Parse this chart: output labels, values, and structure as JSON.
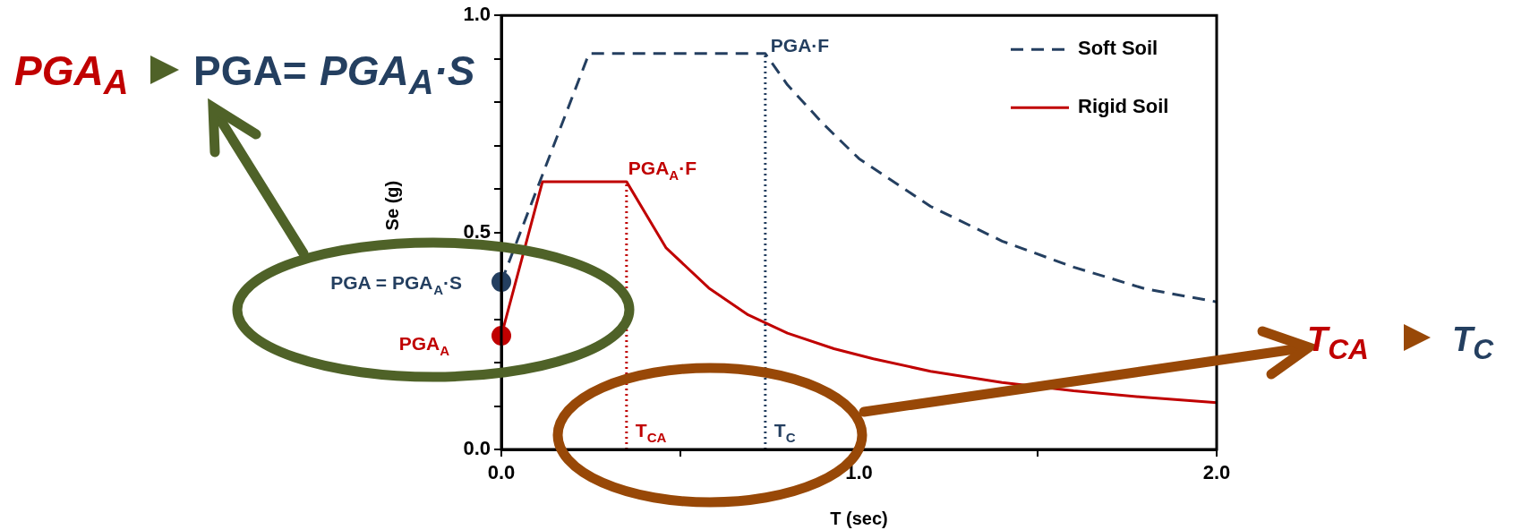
{
  "chart_data": {
    "type": "line",
    "xlabel": "T (sec)",
    "ylabel": "Se (g)",
    "xlim": [
      0,
      2
    ],
    "xticks": [
      {
        "value": 0,
        "label": "0.0"
      },
      {
        "value": 0.5,
        "label": null
      },
      {
        "value": 1,
        "label": "1.0"
      },
      {
        "value": 1.5,
        "label": null
      },
      {
        "value": 2,
        "label": "2.0"
      }
    ],
    "ylim": [
      0,
      1
    ],
    "yticks": [
      {
        "value": 0,
        "label": "0.0"
      },
      {
        "value": 0.1,
        "label": null
      },
      {
        "value": 0.2,
        "label": null
      },
      {
        "value": 0.3,
        "label": null
      },
      {
        "value": 0.4,
        "label": null
      },
      {
        "value": 0.5,
        "label": "0.5"
      },
      {
        "value": 0.6,
        "label": null
      },
      {
        "value": 0.7,
        "label": null
      },
      {
        "value": 0.8,
        "label": null
      },
      {
        "value": 0.9,
        "label": null
      },
      {
        "value": 1,
        "label": "1.0"
      }
    ],
    "grid": false,
    "legend": "top right",
    "series": [
      {
        "name": "Soft Soil",
        "color": "#243f60",
        "line_style": "dashed",
        "marker": "none",
        "x": [
          0,
          0.245,
          0.738,
          0.8,
          0.9,
          1.0,
          1.2,
          1.4,
          1.6,
          1.8,
          2.0
        ],
        "values": [
          0.386,
          0.912,
          0.912,
          0.84,
          0.75,
          0.67,
          0.56,
          0.48,
          0.42,
          0.37,
          0.34
        ]
      },
      {
        "name": "Rigid Soil",
        "color": "#c00000",
        "line_style": "solid",
        "marker": "none",
        "x": [
          0,
          0.115,
          0.35,
          0.46,
          0.58,
          0.69,
          0.8,
          0.93,
          1.04,
          1.2,
          1.4,
          1.6,
          1.8,
          2.0
        ],
        "values": [
          0.262,
          0.617,
          0.617,
          0.465,
          0.372,
          0.31,
          0.268,
          0.232,
          0.209,
          0.18,
          0.154,
          0.135,
          0.12,
          0.108
        ]
      },
      {
        "type": "scatter",
        "color": "#243f60",
        "marker": "circle",
        "x": [
          0
        ],
        "values": [
          0.386
        ]
      },
      {
        "type": "scatter",
        "color": "#c00000",
        "marker": "circle",
        "x": [
          0
        ],
        "values": [
          0.262
        ]
      },
      {
        "color": "#c00000",
        "line_style": "dotted",
        "marker": "none",
        "x": [
          0.35,
          0.35
        ],
        "values": [
          0,
          0.617
        ]
      },
      {
        "color": "#243f60",
        "line_style": "dotted",
        "marker": "none",
        "x": [
          0.738,
          0.738
        ],
        "values": [
          0,
          0.912
        ]
      }
    ],
    "annotations": [
      "PGA$_{A}$",
      "PGA=",
      "PGA$_{A}$·S",
      "T$_{CA}$",
      "T$_{C}$",
      {
        "text": "PGA·F",
        "x": 0.738,
        "y": 0.912
      },
      {
        "text": "PGA$_{A}$·F",
        "x": 0.35,
        "y": 0.617
      },
      {
        "text": "T$_{CA}$",
        "x": 0.35,
        "y": 0
      },
      {
        "text": "T$_{C}$",
        "x": 0.738,
        "y": 0
      },
      {
        "text": "PGA = PGA$_{A}$·S",
        "x": 0,
        "y": 0.386
      },
      {
        "text": "PGA$_{A}$",
        "x": 0,
        "y": 0.262
      }
    ]
  }
}
